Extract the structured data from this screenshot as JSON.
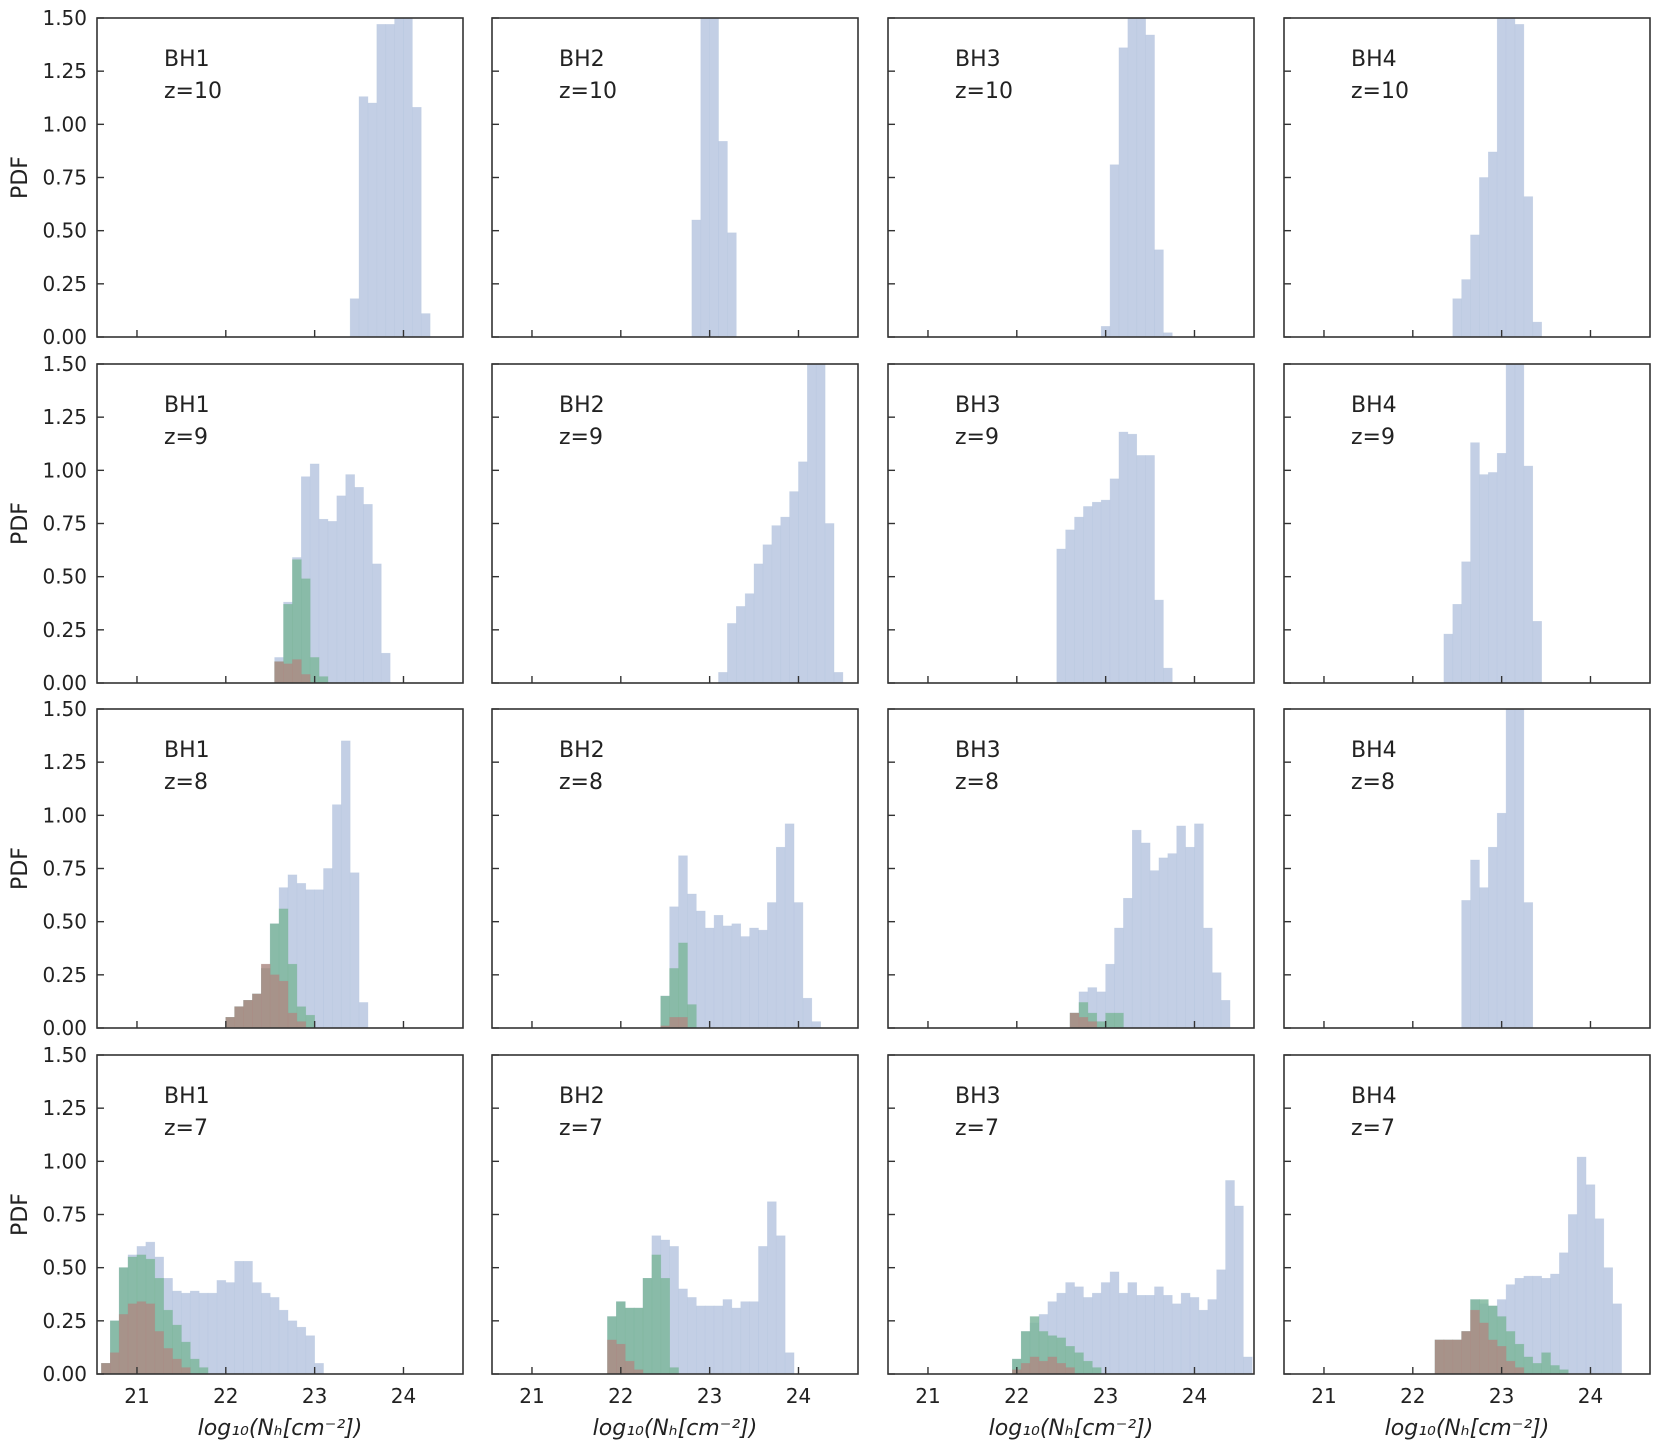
{
  "colors": {
    "blue": "#b8c7e0",
    "green": "#7fb79d",
    "brown": "#ad8c85",
    "axis": "#333333"
  },
  "axis_text": {
    "ylabel": "PDF",
    "xlabel": "log₁₀(Nₕ[cm⁻²])"
  },
  "chart_data": {
    "type": "bar",
    "layout": "4x4 grid of histograms (rows z=10,9,8,7; columns BH1..BH4)",
    "xlim": [
      20.55,
      24.67
    ],
    "ylim": [
      0,
      1.5
    ],
    "xticks": [
      21,
      22,
      23,
      24
    ],
    "yticks": [
      "0.00",
      "0.25",
      "0.50",
      "0.75",
      "1.00",
      "1.25",
      "1.50"
    ],
    "bin_width": 0.1,
    "grid": false,
    "panels": [
      {
        "label": "BH1",
        "z": "z=10",
        "series": [
          {
            "name": "blue",
            "x0": 23.4,
            "values": [
              0.18,
              1.13,
              1.1,
              1.47,
              1.47,
              1.5,
              1.5,
              1.08,
              0.11
            ]
          }
        ]
      },
      {
        "label": "BH2",
        "z": "z=10",
        "series": [
          {
            "name": "blue",
            "x0": 22.8,
            "values": [
              0.55,
              1.5,
              1.5,
              0.92,
              0.49
            ]
          }
        ]
      },
      {
        "label": "BH3",
        "z": "z=10",
        "series": [
          {
            "name": "blue",
            "x0": 22.95,
            "values": [
              0.05,
              0.81,
              1.36,
              1.5,
              1.5,
              1.42,
              0.41,
              0.02
            ]
          }
        ]
      },
      {
        "label": "BH4",
        "z": "z=10",
        "series": [
          {
            "name": "blue",
            "x0": 22.45,
            "values": [
              0.18,
              0.27,
              0.48,
              0.75,
              0.87,
              1.5,
              1.5,
              1.47,
              0.66,
              0.07
            ]
          }
        ]
      },
      {
        "label": "BH1",
        "z": "z=9",
        "series": [
          {
            "name": "blue",
            "x0": 22.55,
            "values": [
              0.12,
              0.38,
              0.59,
              0.97,
              1.03,
              0.77,
              0.76,
              0.88,
              0.98,
              0.92,
              0.84,
              0.56,
              0.14
            ]
          },
          {
            "name": "green",
            "x0": 22.55,
            "values": [
              0.1,
              0.37,
              0.58,
              0.49,
              0.12,
              0.03
            ]
          },
          {
            "name": "brown",
            "x0": 22.55,
            "values": [
              0.1,
              0.09,
              0.11,
              0.04
            ]
          }
        ]
      },
      {
        "label": "BH2",
        "z": "z=9",
        "series": [
          {
            "name": "blue",
            "x0": 23.1,
            "values": [
              0.05,
              0.28,
              0.36,
              0.42,
              0.56,
              0.65,
              0.74,
              0.78,
              0.9,
              1.04,
              1.5,
              1.5,
              0.75,
              0.05
            ]
          }
        ]
      },
      {
        "label": "BH3",
        "z": "z=9",
        "series": [
          {
            "name": "blue",
            "x0": 22.45,
            "values": [
              0.63,
              0.72,
              0.78,
              0.83,
              0.85,
              0.86,
              0.96,
              1.18,
              1.17,
              1.07,
              1.07,
              0.39,
              0.07
            ]
          }
        ]
      },
      {
        "label": "BH4",
        "z": "z=9",
        "series": [
          {
            "name": "blue",
            "x0": 22.35,
            "values": [
              0.23,
              0.37,
              0.57,
              1.13,
              0.98,
              0.99,
              1.08,
              1.5,
              1.5,
              1.02,
              0.29
            ]
          }
        ]
      },
      {
        "label": "BH1",
        "z": "z=8",
        "series": [
          {
            "name": "blue",
            "x0": 22.0,
            "values": [
              0.05,
              0.1,
              0.13,
              0.16,
              0.28,
              0.49,
              0.66,
              0.72,
              0.68,
              0.65,
              0.65,
              0.75,
              1.05,
              1.35,
              0.73,
              0.12
            ]
          },
          {
            "name": "green",
            "x0": 22.0,
            "values": [
              0.05,
              0.1,
              0.13,
              0.16,
              0.28,
              0.49,
              0.56,
              0.3,
              0.1,
              0.06
            ]
          },
          {
            "name": "brown",
            "x0": 22.0,
            "values": [
              0.05,
              0.1,
              0.13,
              0.16,
              0.3,
              0.25,
              0.22,
              0.07,
              0.03
            ]
          }
        ]
      },
      {
        "label": "BH2",
        "z": "z=8",
        "series": [
          {
            "name": "blue",
            "x0": 22.45,
            "values": [
              0.15,
              0.57,
              0.81,
              0.63,
              0.55,
              0.47,
              0.53,
              0.48,
              0.49,
              0.43,
              0.47,
              0.46,
              0.59,
              0.85,
              0.96,
              0.59,
              0.14,
              0.03
            ]
          },
          {
            "name": "green",
            "x0": 22.45,
            "values": [
              0.15,
              0.28,
              0.4,
              0.11
            ]
          },
          {
            "name": "brown",
            "x0": 22.45,
            "values": [
              0.01,
              0.05,
              0.05
            ]
          }
        ]
      },
      {
        "label": "BH3",
        "z": "z=8",
        "series": [
          {
            "name": "blue",
            "x0": 22.6,
            "values": [
              0.07,
              0.17,
              0.19,
              0.17,
              0.3,
              0.47,
              0.61,
              0.93,
              0.87,
              0.74,
              0.8,
              0.82,
              0.95,
              0.85,
              0.96,
              0.47,
              0.26,
              0.13
            ]
          },
          {
            "name": "green",
            "x0": 22.6,
            "values": [
              0.07,
              0.12,
              0.07,
              0.03,
              0.07,
              0.07
            ]
          },
          {
            "name": "brown",
            "x0": 22.6,
            "values": [
              0.07,
              0.05,
              0.03
            ]
          }
        ]
      },
      {
        "label": "BH4",
        "z": "z=8",
        "series": [
          {
            "name": "blue",
            "x0": 22.55,
            "values": [
              0.6,
              0.79,
              0.66,
              0.85,
              1.01,
              1.5,
              1.5,
              0.59
            ]
          }
        ]
      },
      {
        "label": "BH1",
        "z": "z=7",
        "series": [
          {
            "name": "blue",
            "x0": 20.6,
            "values": [
              0.05,
              0.25,
              0.5,
              0.56,
              0.6,
              0.62,
              0.55,
              0.45,
              0.39,
              0.38,
              0.39,
              0.38,
              0.38,
              0.44,
              0.43,
              0.53,
              0.53,
              0.43,
              0.38,
              0.36,
              0.3,
              0.25,
              0.22,
              0.18,
              0.05
            ]
          },
          {
            "name": "green",
            "x0": 20.6,
            "values": [
              0.05,
              0.25,
              0.5,
              0.55,
              0.56,
              0.54,
              0.45,
              0.3,
              0.23,
              0.15,
              0.07,
              0.03
            ]
          },
          {
            "name": "brown",
            "x0": 20.6,
            "values": [
              0.05,
              0.1,
              0.28,
              0.33,
              0.34,
              0.33,
              0.2,
              0.12,
              0.07,
              0.03
            ]
          }
        ]
      },
      {
        "label": "BH2",
        "z": "z=7",
        "series": [
          {
            "name": "blue",
            "x0": 21.85,
            "values": [
              0.27,
              0.34,
              0.31,
              0.31,
              0.45,
              0.65,
              0.63,
              0.6,
              0.4,
              0.36,
              0.32,
              0.32,
              0.32,
              0.35,
              0.31,
              0.34,
              0.34,
              0.6,
              0.81,
              0.65,
              0.1
            ]
          },
          {
            "name": "green",
            "x0": 21.85,
            "values": [
              0.27,
              0.34,
              0.31,
              0.31,
              0.45,
              0.56,
              0.45,
              0.03
            ]
          },
          {
            "name": "brown",
            "x0": 21.85,
            "values": [
              0.16,
              0.14,
              0.06,
              0.02
            ]
          }
        ]
      },
      {
        "label": "BH3",
        "z": "z=7",
        "series": [
          {
            "name": "blue",
            "x0": 21.95,
            "values": [
              0.07,
              0.2,
              0.24,
              0.28,
              0.34,
              0.38,
              0.43,
              0.41,
              0.36,
              0.38,
              0.43,
              0.48,
              0.38,
              0.43,
              0.37,
              0.37,
              0.41,
              0.37,
              0.33,
              0.38,
              0.36,
              0.3,
              0.35,
              0.49,
              0.91,
              0.79,
              0.08
            ]
          },
          {
            "name": "green",
            "x0": 21.95,
            "values": [
              0.07,
              0.2,
              0.27,
              0.2,
              0.18,
              0.17,
              0.13,
              0.1,
              0.06,
              0.03
            ]
          },
          {
            "name": "brown",
            "x0": 21.95,
            "values": [
              0.02,
              0.05,
              0.08,
              0.06,
              0.08,
              0.05,
              0.03
            ]
          }
        ]
      },
      {
        "label": "BH4",
        "z": "z=7",
        "series": [
          {
            "name": "blue",
            "x0": 22.25,
            "values": [
              0.16,
              0.16,
              0.16,
              0.2,
              0.35,
              0.33,
              0.32,
              0.35,
              0.42,
              0.45,
              0.46,
              0.46,
              0.45,
              0.47,
              0.57,
              0.75,
              1.02,
              0.89,
              0.73,
              0.5,
              0.33
            ]
          },
          {
            "name": "green",
            "x0": 22.25,
            "values": [
              0.16,
              0.16,
              0.16,
              0.2,
              0.35,
              0.35,
              0.32,
              0.27,
              0.2,
              0.14,
              0.08,
              0.05,
              0.1,
              0.04,
              0.02
            ]
          },
          {
            "name": "brown",
            "x0": 22.25,
            "values": [
              0.16,
              0.16,
              0.16,
              0.2,
              0.3,
              0.24,
              0.16,
              0.13,
              0.06,
              0.03
            ]
          }
        ]
      }
    ]
  }
}
